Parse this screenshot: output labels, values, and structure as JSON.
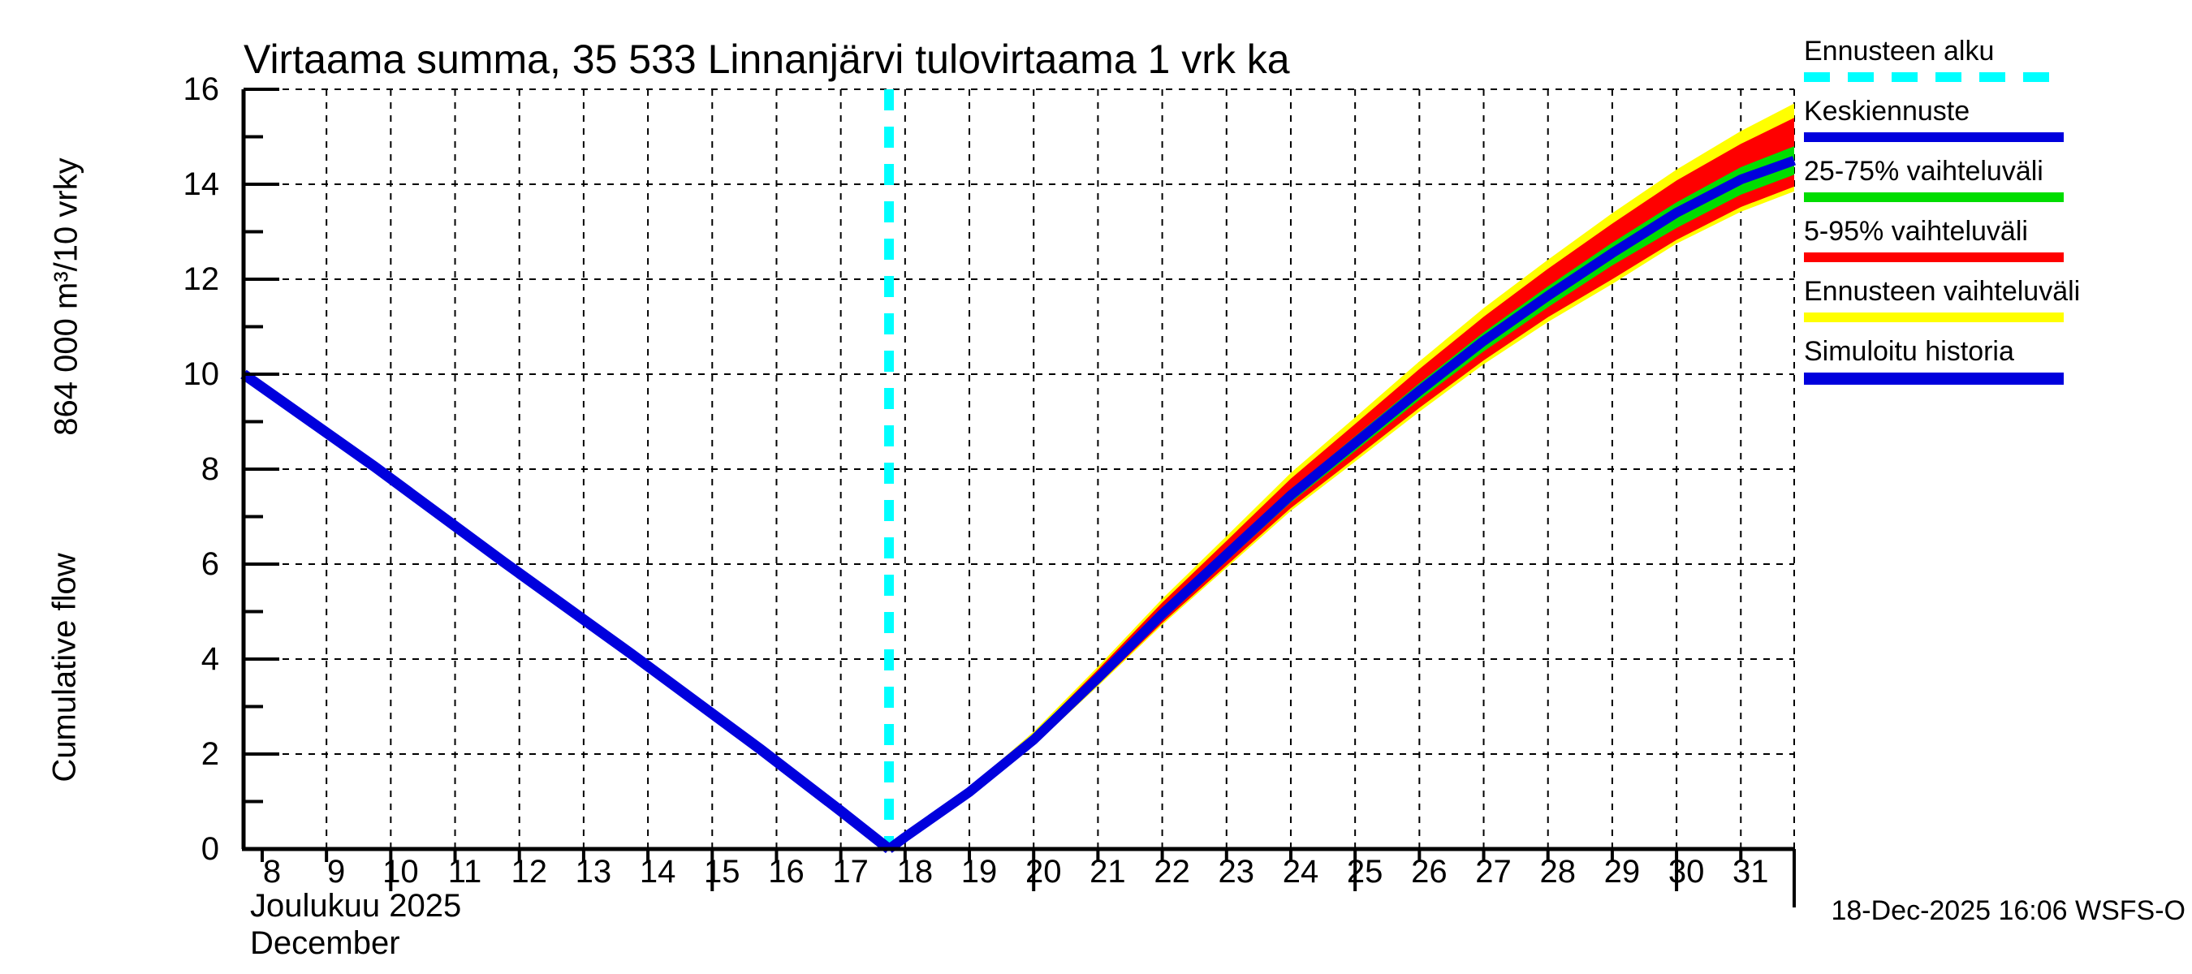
{
  "title": "Virtaama summa, 35 533 Linnanjärvi tulovirtaama 1 vrk ka",
  "y_axis": {
    "label_units": "864 000 m³/10 vrky",
    "label_name": "Cumulative flow",
    "ticks": [
      0,
      2,
      4,
      6,
      8,
      10,
      12,
      14,
      16
    ]
  },
  "x_axis": {
    "ticks": [
      8,
      9,
      10,
      11,
      12,
      13,
      14,
      15,
      16,
      17,
      18,
      19,
      20,
      21,
      22,
      23,
      24,
      25,
      26,
      27,
      28,
      29,
      30,
      31
    ],
    "major_ticks": [
      10,
      15,
      20,
      25,
      30
    ],
    "month_label_fi": "Joulukuu  2025",
    "month_label_en": "December"
  },
  "footer": {
    "timestamp": "18-Dec-2025 16:06 WSFS-O"
  },
  "colors": {
    "blue": "#0000DD",
    "cyan": "#00FFFF",
    "green": "#00DD00",
    "red": "#FF0000",
    "yellow": "#FFFF00",
    "axis": "#000000"
  },
  "legend": {
    "items": [
      {
        "label": "Ennusteen alku",
        "color": "#00FFFF",
        "style": "dashed",
        "thick": false
      },
      {
        "label": "Keskiennuste",
        "color": "#0000DD",
        "style": "solid",
        "thick": false
      },
      {
        "label": "25-75% vaihteluväli",
        "color": "#00DD00",
        "style": "solid",
        "thick": false
      },
      {
        "label": "5-95% vaihteluväli",
        "color": "#FF0000",
        "style": "solid",
        "thick": false
      },
      {
        "label": "Ennusteen vaihteluväli",
        "color": "#FFFF00",
        "style": "solid",
        "thick": false
      },
      {
        "label": "Simuloitu historia",
        "color": "#0000DD",
        "style": "solid",
        "thick": true
      }
    ]
  },
  "chart_data": {
    "type": "line",
    "title": "Virtaama summa, 35 533 Linnanjärvi tulovirtaama 1 vrk ka",
    "xlabel": "Joulukuu 2025 / December",
    "ylabel": "Cumulative flow, 864 000 m³/10 vrky",
    "xlim": [
      7.71,
      31.83
    ],
    "ylim": [
      0,
      16
    ],
    "grid": true,
    "legend_position": "top-right",
    "forecast_start_x": 17.75,
    "history": {
      "name": "Simuloitu historia",
      "x": [
        7.71,
        9.75,
        11.75,
        13.75,
        15.75,
        17.0,
        17.75
      ],
      "values": [
        10.0,
        8.05,
        6.05,
        4.1,
        2.1,
        0.8,
        0.0
      ]
    },
    "forecast_x": [
      17.75,
      18,
      19,
      20,
      21,
      22,
      23,
      24,
      25,
      26,
      27,
      28,
      29,
      30,
      31,
      31.83
    ],
    "series": [
      {
        "name": "Keskiennuste",
        "values": [
          0,
          0.25,
          1.2,
          2.3,
          3.6,
          4.95,
          6.2,
          7.45,
          8.55,
          9.65,
          10.7,
          11.65,
          12.55,
          13.4,
          14.1,
          14.5
        ]
      },
      {
        "name": "Ennusteen vaihteluväli (upper)",
        "values": [
          0,
          0.27,
          1.29,
          2.47,
          3.84,
          5.27,
          6.59,
          7.92,
          9.09,
          10.27,
          11.39,
          12.41,
          13.39,
          14.31,
          15.12,
          15.7
        ]
      },
      {
        "name": "Ennusteen vaihteluväli (lower)",
        "values": [
          0,
          0.24,
          1.13,
          2.18,
          3.43,
          4.72,
          5.92,
          7.12,
          8.16,
          9.21,
          10.21,
          11.1,
          11.9,
          12.75,
          13.42,
          13.85
        ]
      },
      {
        "name": "5-95% vaihteluväli (upper)",
        "values": [
          0,
          0.26,
          1.27,
          2.42,
          3.78,
          5.19,
          6.49,
          7.8,
          8.95,
          10.11,
          11.21,
          12.22,
          13.17,
          14.08,
          14.85,
          15.4
        ]
      },
      {
        "name": "5-95% vaihteluväli (lower)",
        "values": [
          0,
          0.24,
          1.14,
          2.2,
          3.46,
          4.76,
          5.97,
          7.18,
          8.23,
          9.29,
          10.29,
          11.2,
          12.0,
          12.83,
          13.52,
          13.95
        ]
      },
      {
        "name": "25-75% vaihteluväli (upper)",
        "values": [
          0,
          0.25,
          1.22,
          2.34,
          3.66,
          5.05,
          6.31,
          7.57,
          8.69,
          9.81,
          10.88,
          11.85,
          12.77,
          13.62,
          14.36,
          14.8
        ]
      },
      {
        "name": "25-75% vaihteluväli (lower)",
        "values": [
          0,
          0.24,
          1.17,
          2.25,
          3.5,
          4.81,
          6.06,
          7.3,
          8.38,
          9.46,
          10.48,
          11.41,
          12.29,
          13.08,
          13.78,
          14.2
        ]
      }
    ]
  }
}
